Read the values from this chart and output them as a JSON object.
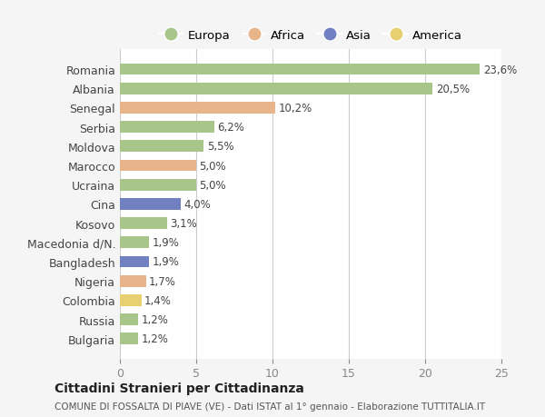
{
  "countries": [
    "Romania",
    "Albania",
    "Senegal",
    "Serbia",
    "Moldova",
    "Marocco",
    "Ucraina",
    "Cina",
    "Kosovo",
    "Macedonia d/N.",
    "Bangladesh",
    "Nigeria",
    "Colombia",
    "Russia",
    "Bulgaria"
  ],
  "values": [
    23.6,
    20.5,
    10.2,
    6.2,
    5.5,
    5.0,
    5.0,
    4.0,
    3.1,
    1.9,
    1.9,
    1.7,
    1.4,
    1.2,
    1.2
  ],
  "labels": [
    "23,6%",
    "20,5%",
    "10,2%",
    "6,2%",
    "5,5%",
    "5,0%",
    "5,0%",
    "4,0%",
    "3,1%",
    "1,9%",
    "1,9%",
    "1,7%",
    "1,4%",
    "1,2%",
    "1,2%"
  ],
  "continents": [
    "Europa",
    "Europa",
    "Africa",
    "Europa",
    "Europa",
    "Africa",
    "Europa",
    "Asia",
    "Europa",
    "Europa",
    "Asia",
    "Africa",
    "America",
    "Europa",
    "Europa"
  ],
  "colors": {
    "Europa": "#a8c58a",
    "Africa": "#e8b48a",
    "Asia": "#7080c0",
    "America": "#e8d070"
  },
  "legend_order": [
    "Europa",
    "Africa",
    "Asia",
    "America"
  ],
  "xlim": [
    0,
    25
  ],
  "xticks": [
    0,
    5,
    10,
    15,
    20,
    25
  ],
  "title": "Cittadini Stranieri per Cittadinanza",
  "subtitle": "COMUNE DI FOSSALTA DI PIAVE (VE) - Dati ISTAT al 1° gennaio - Elaborazione TUTTITALIA.IT",
  "bg_color": "#f5f5f5",
  "plot_bg_color": "#ffffff",
  "grid_color": "#cccccc",
  "bar_height": 0.6
}
